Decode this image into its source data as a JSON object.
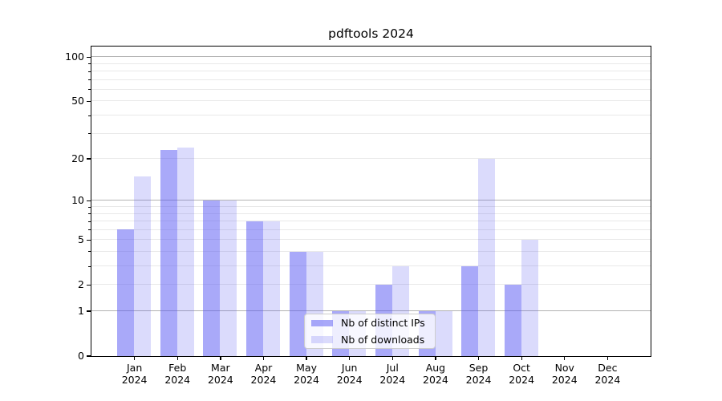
{
  "title": "pdftools 2024",
  "chart_data": {
    "type": "bar",
    "title": "pdftools 2024",
    "categories": [
      "Jan 2024",
      "Feb 2024",
      "Mar 2024",
      "Apr 2024",
      "May 2024",
      "Jun 2024",
      "Jul 2024",
      "Aug 2024",
      "Sep 2024",
      "Oct 2024",
      "Nov 2024",
      "Dec 2024"
    ],
    "series": [
      {
        "name": "Nb of distinct IPs",
        "values": [
          6,
          23,
          10,
          7,
          4,
          1,
          2,
          1,
          3,
          2,
          0,
          0
        ],
        "color": "rgba(87,87,243,0.51)"
      },
      {
        "name": "Nb of downloads",
        "values": [
          15,
          24,
          10,
          7,
          4,
          1,
          3,
          1,
          20,
          5,
          0,
          0
        ],
        "color": "rgba(87,87,243,0.21)"
      }
    ],
    "xlabel": "",
    "ylabel": "",
    "yscale": "log1p",
    "ylim": [
      0,
      118
    ],
    "ytick_labels": [
      0,
      1,
      2,
      5,
      10,
      20,
      50,
      100
    ],
    "major_gridlines": [
      1,
      10,
      100
    ],
    "minor_gridlines": [
      2,
      3,
      4,
      5,
      6,
      7,
      8,
      9,
      20,
      30,
      40,
      50,
      60,
      70,
      80,
      90
    ],
    "grid": true,
    "legend_position": "lower center"
  },
  "legend": {
    "entries": [
      {
        "label": "Nb of distinct IPs",
        "color": "rgba(87,87,243,0.51)"
      },
      {
        "label": "Nb of downloads",
        "color": "rgba(87,87,243,0.21)"
      }
    ]
  },
  "colors": {
    "bar_dark": "rgba(87,87,243,0.51)",
    "bar_light": "rgba(87,87,243,0.21)",
    "grid_major": "#b2b2b2",
    "grid_minor": "#e9e9e9",
    "axis": "#000000",
    "tick_text": "#000000",
    "legend_border": "#cccccc",
    "legend_background": "rgba(255,255,255,0.8)"
  }
}
